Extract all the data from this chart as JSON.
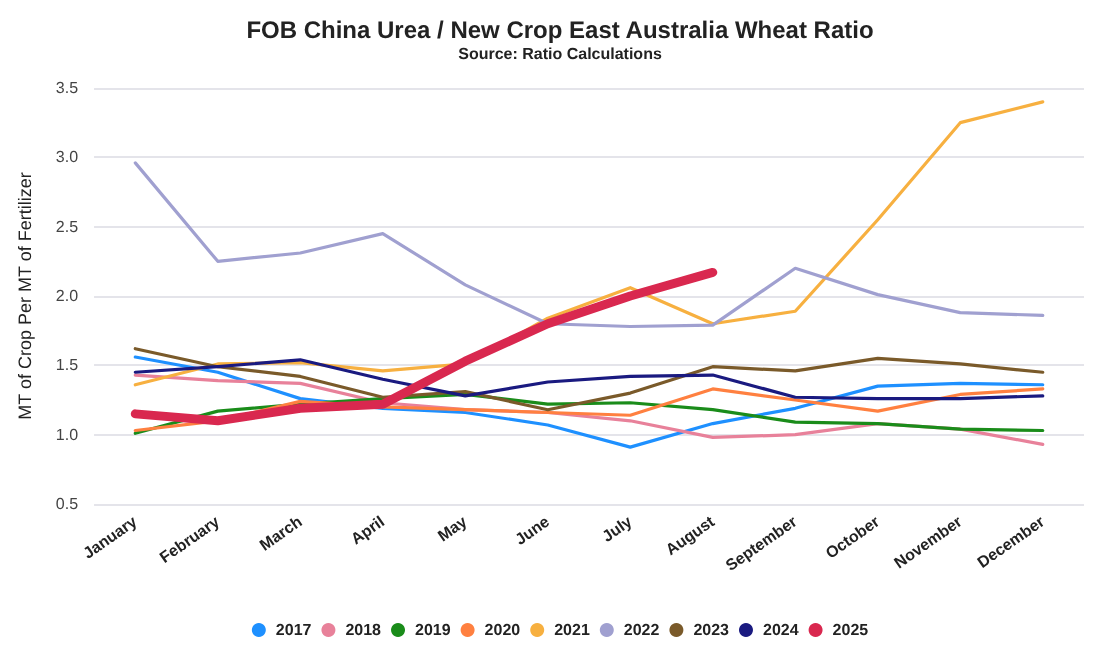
{
  "chart_data": {
    "type": "line",
    "title": "FOB China Urea / New Crop East Australia Wheat Ratio",
    "subtitle": "Source: Ratio Calculations",
    "ylabel": "MT of Crop Per MT of Fertilizer",
    "categories": [
      "January",
      "February",
      "March",
      "April",
      "May",
      "June",
      "July",
      "August",
      "September",
      "October",
      "November",
      "December"
    ],
    "series": [
      {
        "name": "2017",
        "color": "#1e90ff",
        "values": [
          1.56,
          1.45,
          1.26,
          1.19,
          1.16,
          1.07,
          0.91,
          1.08,
          1.19,
          1.35,
          1.37,
          1.36
        ]
      },
      {
        "name": "2018",
        "color": "#e8819a",
        "values": [
          1.43,
          1.39,
          1.37,
          1.23,
          1.18,
          1.16,
          1.1,
          0.98,
          1.0,
          1.08,
          1.04,
          0.93
        ]
      },
      {
        "name": "2019",
        "color": "#1a8c1a",
        "values": [
          1.01,
          1.17,
          1.22,
          1.26,
          1.29,
          1.22,
          1.23,
          1.18,
          1.09,
          1.08,
          1.04,
          1.03
        ]
      },
      {
        "name": "2020",
        "color": "#ff8040",
        "values": [
          1.03,
          1.1,
          1.24,
          1.2,
          1.18,
          1.16,
          1.14,
          1.33,
          1.25,
          1.17,
          1.29,
          1.33
        ]
      },
      {
        "name": "2021",
        "color": "#f7b040",
        "values": [
          1.36,
          1.51,
          1.52,
          1.46,
          1.51,
          1.84,
          2.06,
          1.8,
          1.89,
          2.55,
          3.25,
          3.4
        ]
      },
      {
        "name": "2022",
        "color": "#a0a0d0",
        "values": [
          2.96,
          2.25,
          2.31,
          2.45,
          2.08,
          1.8,
          1.78,
          1.79,
          2.2,
          2.01,
          1.88,
          1.86
        ]
      },
      {
        "name": "2023",
        "color": "#7a5a2a",
        "values": [
          1.62,
          1.49,
          1.42,
          1.27,
          1.31,
          1.18,
          1.3,
          1.49,
          1.46,
          1.55,
          1.51,
          1.45
        ]
      },
      {
        "name": "2024",
        "color": "#1a1a80",
        "values": [
          1.45,
          1.49,
          1.54,
          1.4,
          1.28,
          1.38,
          1.42,
          1.43,
          1.27,
          1.26,
          1.26,
          1.28
        ]
      },
      {
        "name": "2025",
        "color": "#d9284f",
        "values": [
          1.15,
          1.1,
          1.19,
          1.22,
          1.53,
          1.8,
          2.0,
          2.17,
          null,
          null,
          null,
          null
        ]
      }
    ],
    "ylim": [
      0.5,
      3.5
    ],
    "yticks": [
      0.5,
      {
        "value": 1,
        "label": "1.0"
      },
      1.5,
      {
        "value": 2,
        "label": "2.0"
      },
      2.5,
      {
        "value": 3,
        "label": "3.0"
      },
      3.5
    ],
    "grid": "y",
    "legend": "bottom",
    "marker": "none",
    "line_style": "solid"
  }
}
